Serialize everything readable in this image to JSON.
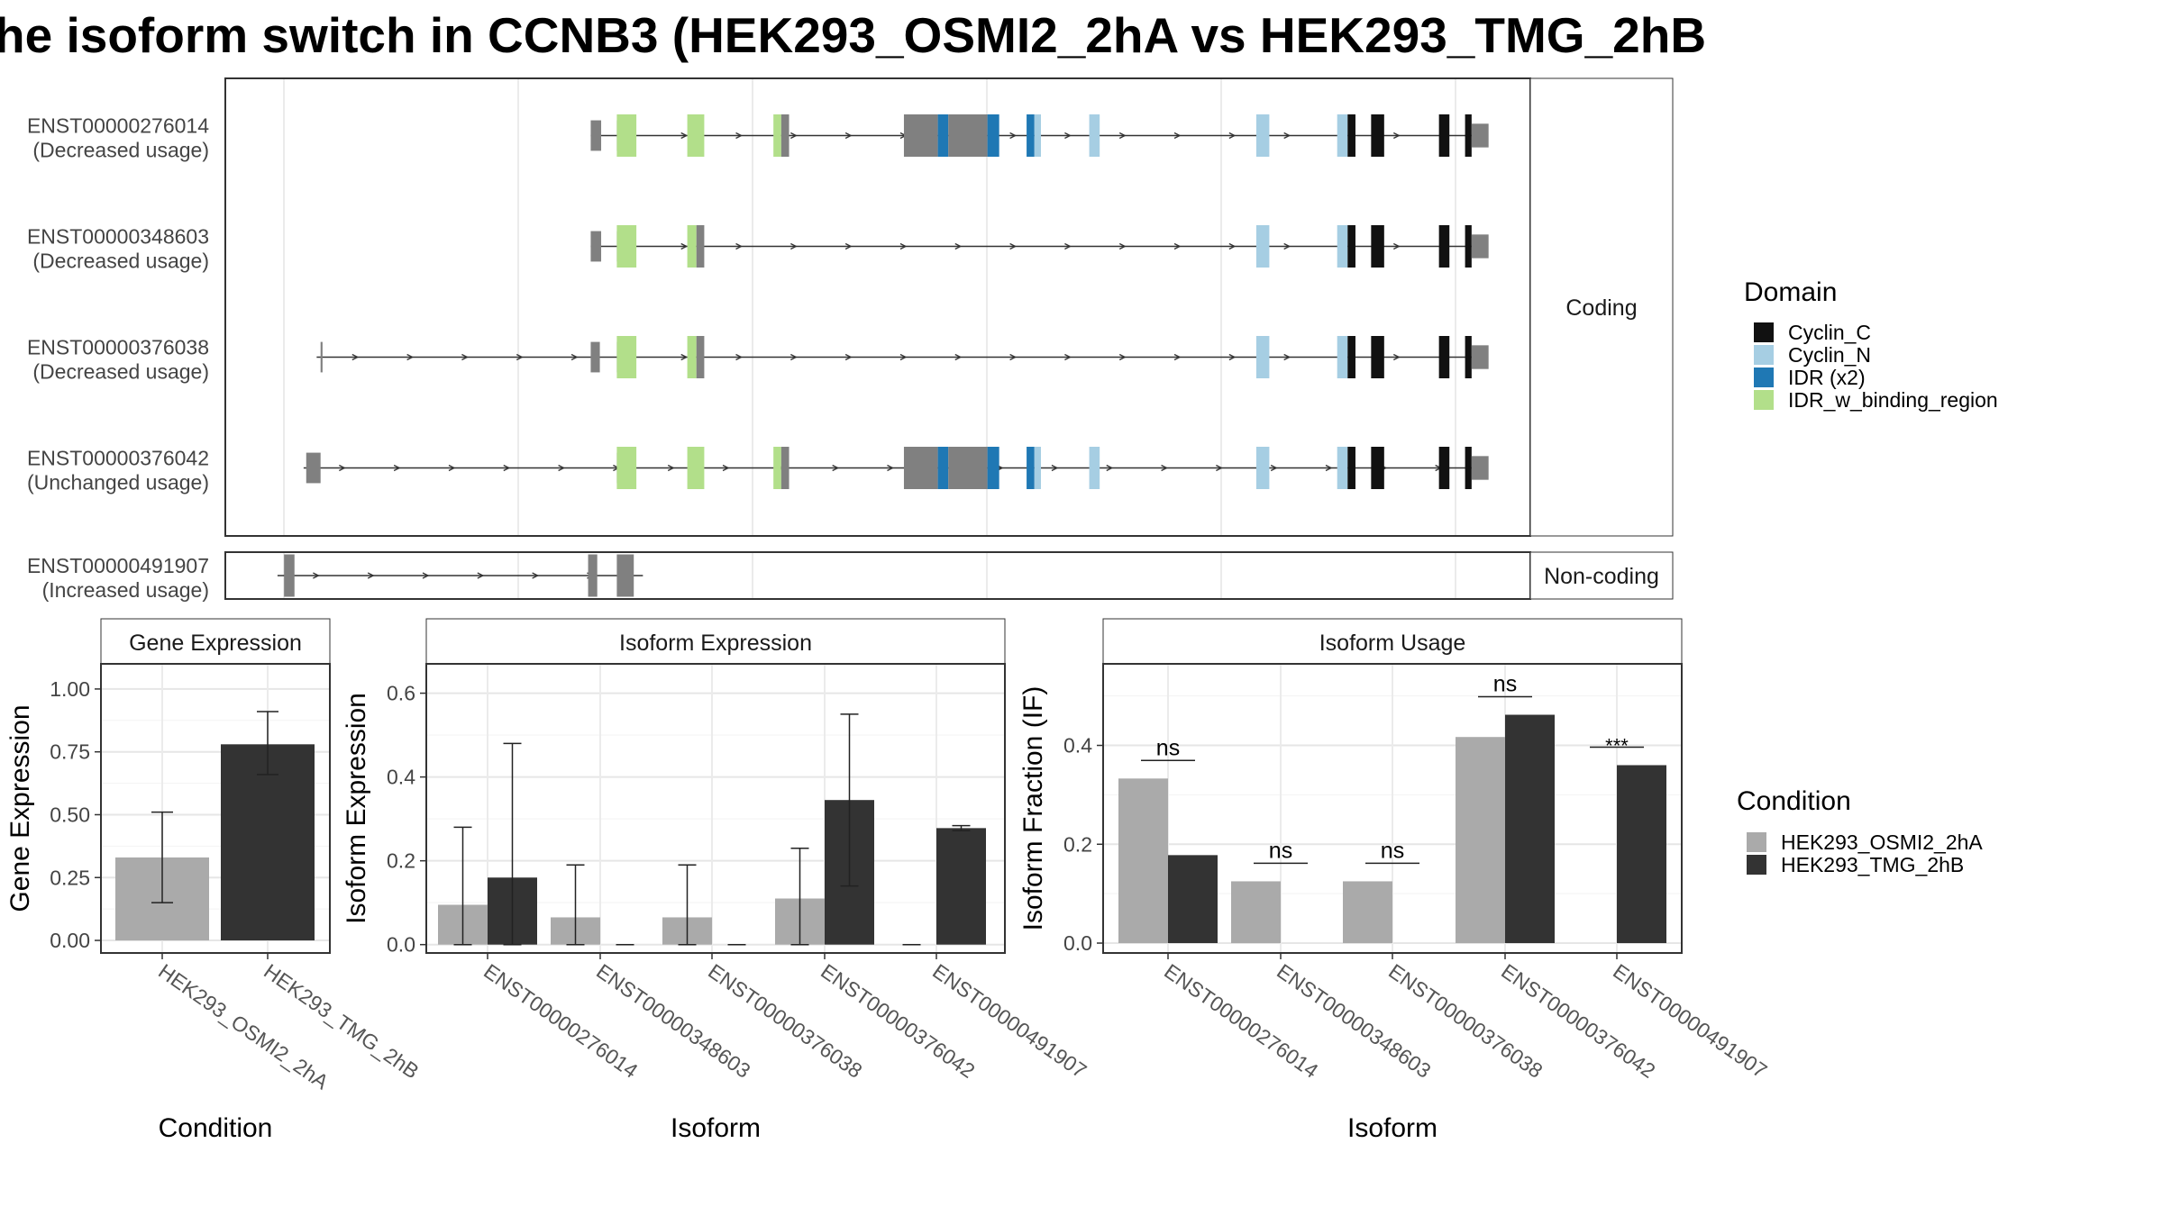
{
  "title": "he isoform switch in CCNB3 (HEK293_OSMI2_2hA vs HEK293_TMG_2hB",
  "colors": {
    "cyclin_c": "#111111",
    "cyclin_n": "#a6cee3",
    "idr": "#1f78b4",
    "idr_binding": "#b2df8a",
    "exon": "#808080",
    "cond_a": "#aaaaaa",
    "cond_b": "#333333"
  },
  "structure": {
    "coding_label": "Coding",
    "noncoding_label": "Non-coding",
    "transcripts": [
      {
        "id": "ENST00000276014",
        "usage": "(Decreased usage)",
        "group": "coding",
        "start": 0.28,
        "end": 0.96,
        "extra": true
      },
      {
        "id": "ENST00000348603",
        "usage": "(Decreased usage)",
        "group": "coding",
        "start": 0.28,
        "end": 0.96,
        "extra": false
      },
      {
        "id": "ENST00000376038",
        "usage": "(Decreased usage)",
        "group": "coding",
        "start": 0.07,
        "end": 0.96,
        "extra": false
      },
      {
        "id": "ENST00000376042",
        "usage": "(Unchanged usage)",
        "group": "coding",
        "start": 0.06,
        "end": 0.96,
        "extra": true
      },
      {
        "id": "ENST00000491907",
        "usage": "(Increased usage)",
        "group": "noncoding",
        "start": 0.04,
        "end": 0.32,
        "extra": false
      }
    ]
  },
  "legend_domain": {
    "title": "Domain",
    "items": [
      {
        "label": "Cyclin_C",
        "color": "#111111"
      },
      {
        "label": "Cyclin_N",
        "color": "#a6cee3"
      },
      {
        "label": "IDR (x2)",
        "color": "#1f78b4"
      },
      {
        "label": "IDR_w_binding_region",
        "color": "#b2df8a"
      }
    ]
  },
  "legend_condition": {
    "title": "Condition",
    "items": [
      {
        "label": "HEK293_OSMI2_2hA",
        "color": "#aaaaaa"
      },
      {
        "label": "HEK293_TMG_2hB",
        "color": "#333333"
      }
    ]
  },
  "chart_data": [
    {
      "type": "bar",
      "title": "Gene Expression",
      "xlabel": "Condition",
      "ylabel": "Gene Expression",
      "categories": [
        "HEK293_OSMI2_2hA",
        "HEK293_TMG_2hB"
      ],
      "values": [
        0.33,
        0.78
      ],
      "error_low": [
        0.15,
        0.66
      ],
      "error_high": [
        0.51,
        0.91
      ],
      "ylim": [
        -0.05,
        1.1
      ],
      "yticks": [
        "0.00",
        "0.25",
        "0.50",
        "0.75",
        "1.00"
      ]
    },
    {
      "type": "bar",
      "title": "Isoform Expression",
      "xlabel": "Isoform",
      "ylabel": "Isoform Expression",
      "categories": [
        "ENST00000276014",
        "ENST00000348603",
        "ENST00000376038",
        "ENST00000376042",
        "ENST00000491907"
      ],
      "series": [
        {
          "name": "HEK293_OSMI2_2hA",
          "values": [
            0.095,
            0.065,
            0.065,
            0.11,
            0.0
          ],
          "error_low": [
            0.0,
            0.0,
            0.0,
            0.0,
            0.0
          ],
          "error_high": [
            0.28,
            0.19,
            0.19,
            0.23,
            0.0
          ]
        },
        {
          "name": "HEK293_TMG_2hB",
          "values": [
            0.16,
            0.0,
            0.0,
            0.345,
            0.278
          ],
          "error_low": [
            0.0,
            0.0,
            0.0,
            0.14,
            0.272
          ],
          "error_high": [
            0.48,
            0.0,
            0.0,
            0.55,
            0.284
          ]
        }
      ],
      "ylim": [
        -0.02,
        0.67
      ],
      "yticks": [
        "0.0",
        "0.2",
        "0.4",
        "0.6"
      ]
    },
    {
      "type": "bar",
      "title": "Isoform Usage",
      "xlabel": "Isoform",
      "ylabel": "Isoform Fraction (IF)",
      "categories": [
        "ENST00000276014",
        "ENST00000348603",
        "ENST00000376038",
        "ENST00000376042",
        "ENST00000491907"
      ],
      "series": [
        {
          "name": "HEK293_OSMI2_2hA",
          "values": [
            0.333,
            0.125,
            0.125,
            0.417,
            0.0
          ]
        },
        {
          "name": "HEK293_TMG_2hB",
          "values": [
            0.178,
            0.0,
            0.0,
            0.462,
            0.36
          ]
        }
      ],
      "significance": [
        "ns",
        "ns",
        "ns",
        "ns",
        "***"
      ],
      "ylim": [
        -0.02,
        0.565
      ],
      "yticks": [
        "0.0",
        "0.2",
        "0.4"
      ]
    }
  ]
}
